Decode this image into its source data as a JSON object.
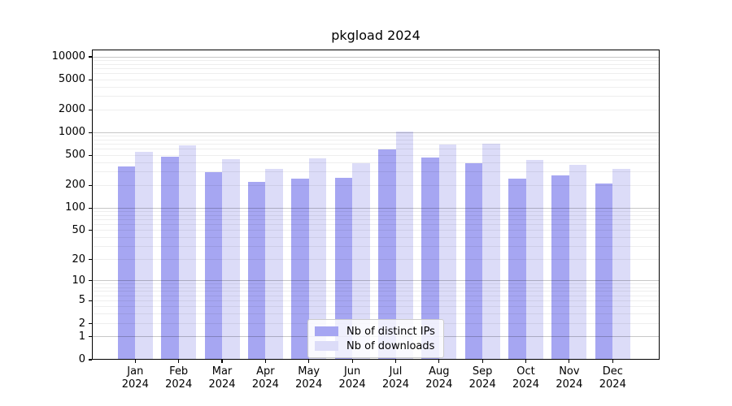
{
  "title": "pkgload 2024",
  "colors": {
    "bar_distinct_ips": "#a6a6f2",
    "bar_downloads": "#dcdcf8",
    "axis": "#000000",
    "grid_major": "#c7c7c7",
    "grid_minor": "#ededed",
    "legend_border": "#cccccc"
  },
  "legend": {
    "items": [
      {
        "label": "Nb of distinct IPs"
      },
      {
        "label": "Nb of downloads"
      }
    ]
  },
  "chart_data": {
    "type": "bar",
    "title": "pkgload 2024",
    "xlabel": "",
    "ylabel": "",
    "yscale": "log1p",
    "ylim": [
      0,
      12000
    ],
    "grid": "horizontal major+minor, drawn over bars",
    "legend_position": "lower center",
    "y_ticks": [
      0,
      1,
      2,
      5,
      10,
      20,
      50,
      100,
      200,
      500,
      1000,
      2000,
      5000,
      10000
    ],
    "categories": [
      "Jan 2024",
      "Feb 2024",
      "Mar 2024",
      "Apr 2024",
      "May 2024",
      "Jun 2024",
      "Jul 2024",
      "Aug 2024",
      "Sep 2024",
      "Oct 2024",
      "Nov 2024",
      "Dec 2024"
    ],
    "series": [
      {
        "name": "Nb of distinct IPs",
        "color": "#a6a6f2",
        "values": [
          360,
          478,
          303,
          224,
          247,
          253,
          597,
          469,
          398,
          247,
          268,
          213
        ]
      },
      {
        "name": "Nb of downloads",
        "color": "#dcdcf8",
        "values": [
          553,
          679,
          444,
          330,
          459,
          389,
          1040,
          703,
          721,
          433,
          373,
          334
        ]
      }
    ]
  }
}
